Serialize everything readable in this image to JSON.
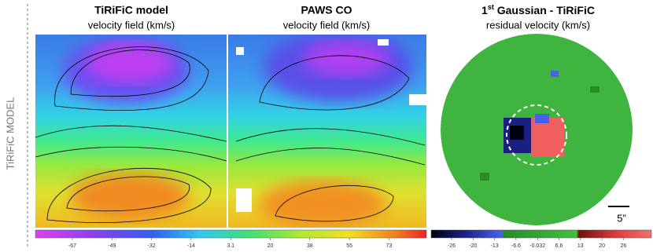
{
  "side_label": "TiRiFiC MODEL",
  "panels": [
    {
      "title": "TiRiFiC model",
      "subtitle": "velocity field (km/s)"
    },
    {
      "title": "PAWS CO",
      "subtitle": "velocity field (km/s)"
    },
    {
      "title_number": "1",
      "title_superscript": "st",
      "title_rest": " Gaussian - TiRiFiC",
      "subtitle": "residual velocity (km/s)"
    }
  ],
  "colorbar_velocity": {
    "ticks": [
      "-67",
      "-49",
      "-32",
      "-14",
      "3.1",
      "20",
      "38",
      "55",
      "73"
    ]
  },
  "colorbar_residual": {
    "ticks": [
      "-26",
      "-20",
      "-13",
      "-6.6",
      "-0.032",
      "6.6",
      "13",
      "20",
      "26"
    ]
  },
  "scale_bar": "5”"
}
